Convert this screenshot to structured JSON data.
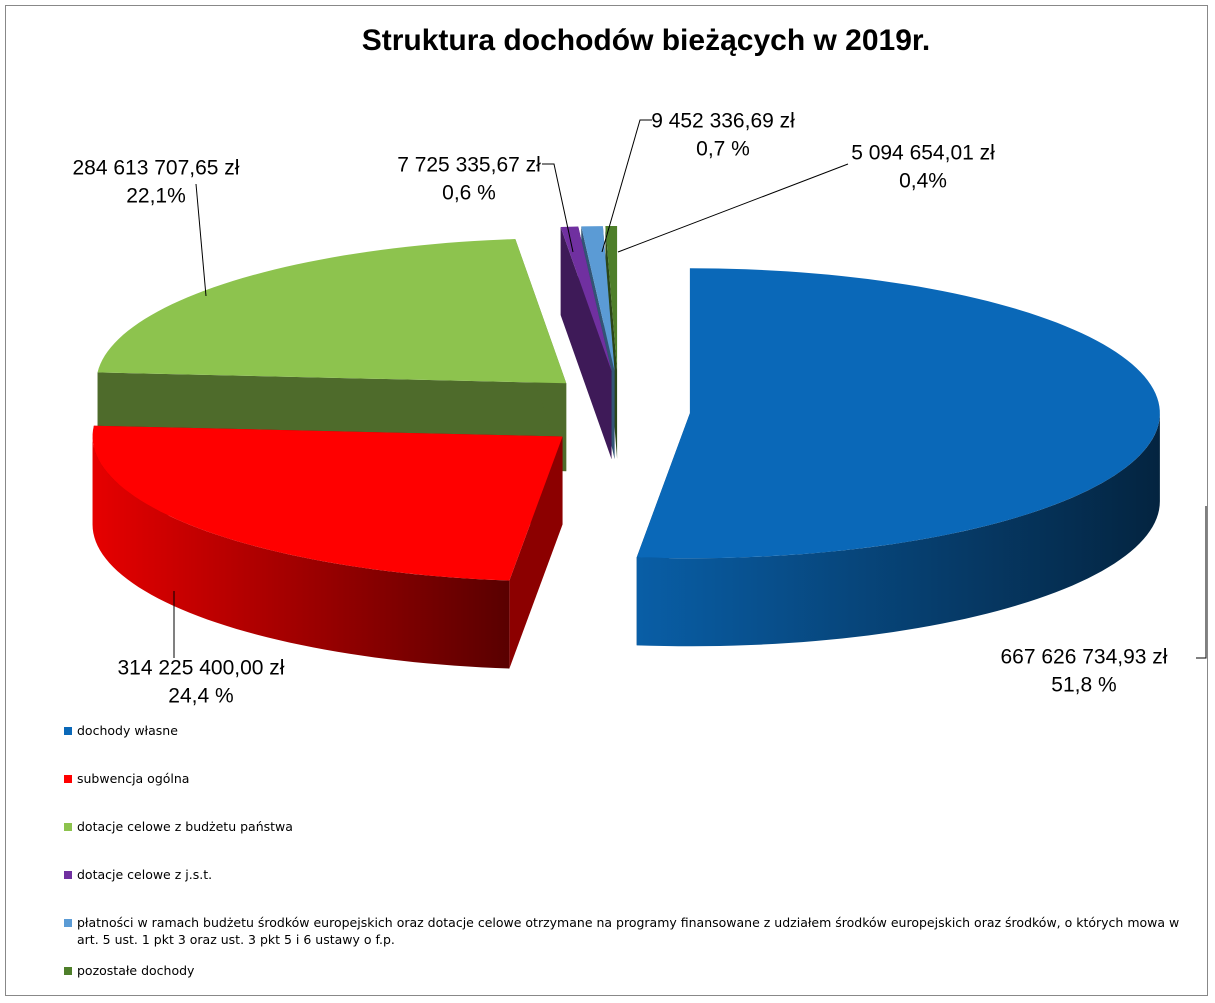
{
  "chart_data": {
    "type": "pie3d",
    "title": "Struktura dochodów bieżących w 2019r.",
    "categories": [
      "dochody własne",
      "subwencja ogólna",
      "dotacje celowe z budżetu państwa",
      "dotacje celowe z j.s.t.",
      "płatności w ramach budżetu środków europejskich oraz dotacje celowe otrzymane na programy finansowane z udziałem środków europejskich oraz środków, o których mowa w art. 5 ust. 1 pkt 3 oraz ust. 3 pkt 5 i 6 ustawy o f.p.",
      "pozostałe dochody"
    ],
    "values": [
      667626734.93,
      314225400.0,
      284613707.65,
      7725335.67,
      9452336.69,
      5094654.01
    ],
    "value_labels": [
      "667 626 734,93 zł",
      "314 225 400,00 zł",
      "284 613 707,65 zł",
      "7 725 335,67 zł",
      "9 452 336,69 zł",
      "5 094 654,01 zł"
    ],
    "percent_labels": [
      "51,8 %",
      "24,4 %",
      "22,1%",
      "0,6 %",
      "0,7 %",
      "0,4%"
    ],
    "colors": [
      "#0a68b8",
      "#ff0000",
      "#8dc34e",
      "#7030a0",
      "#5b9bd5",
      "#4e7f2a"
    ]
  }
}
